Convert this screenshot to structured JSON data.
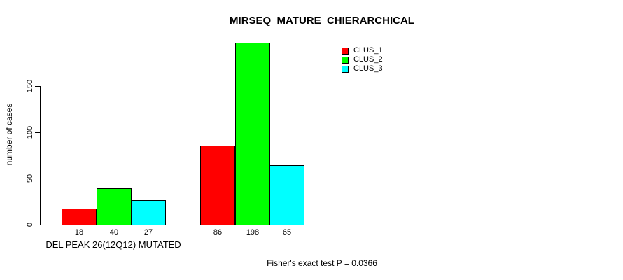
{
  "chart_data": {
    "type": "bar",
    "title": "MIRSEQ_MATURE_CHIERARCHICAL",
    "ylabel": "number of cases",
    "xlabel": "",
    "ylim": [
      0,
      150
    ],
    "yticks": [
      0,
      50,
      100,
      150
    ],
    "grid": false,
    "legend_position": "top-right",
    "bar_border_color": "#000000",
    "series": [
      {
        "name": "CLUS_1",
        "color": "#ff0000"
      },
      {
        "name": "CLUS_2",
        "color": "#00ff00"
      },
      {
        "name": "CLUS_3",
        "color": "#00ffff"
      }
    ],
    "groups": [
      {
        "label": "DEL PEAK 26(12Q12) MUTATED",
        "values": [
          18,
          40,
          27
        ]
      },
      {
        "label": "",
        "values": [
          86,
          198,
          65
        ]
      }
    ],
    "annotation": "Fisher's exact test P = 0.0366"
  }
}
